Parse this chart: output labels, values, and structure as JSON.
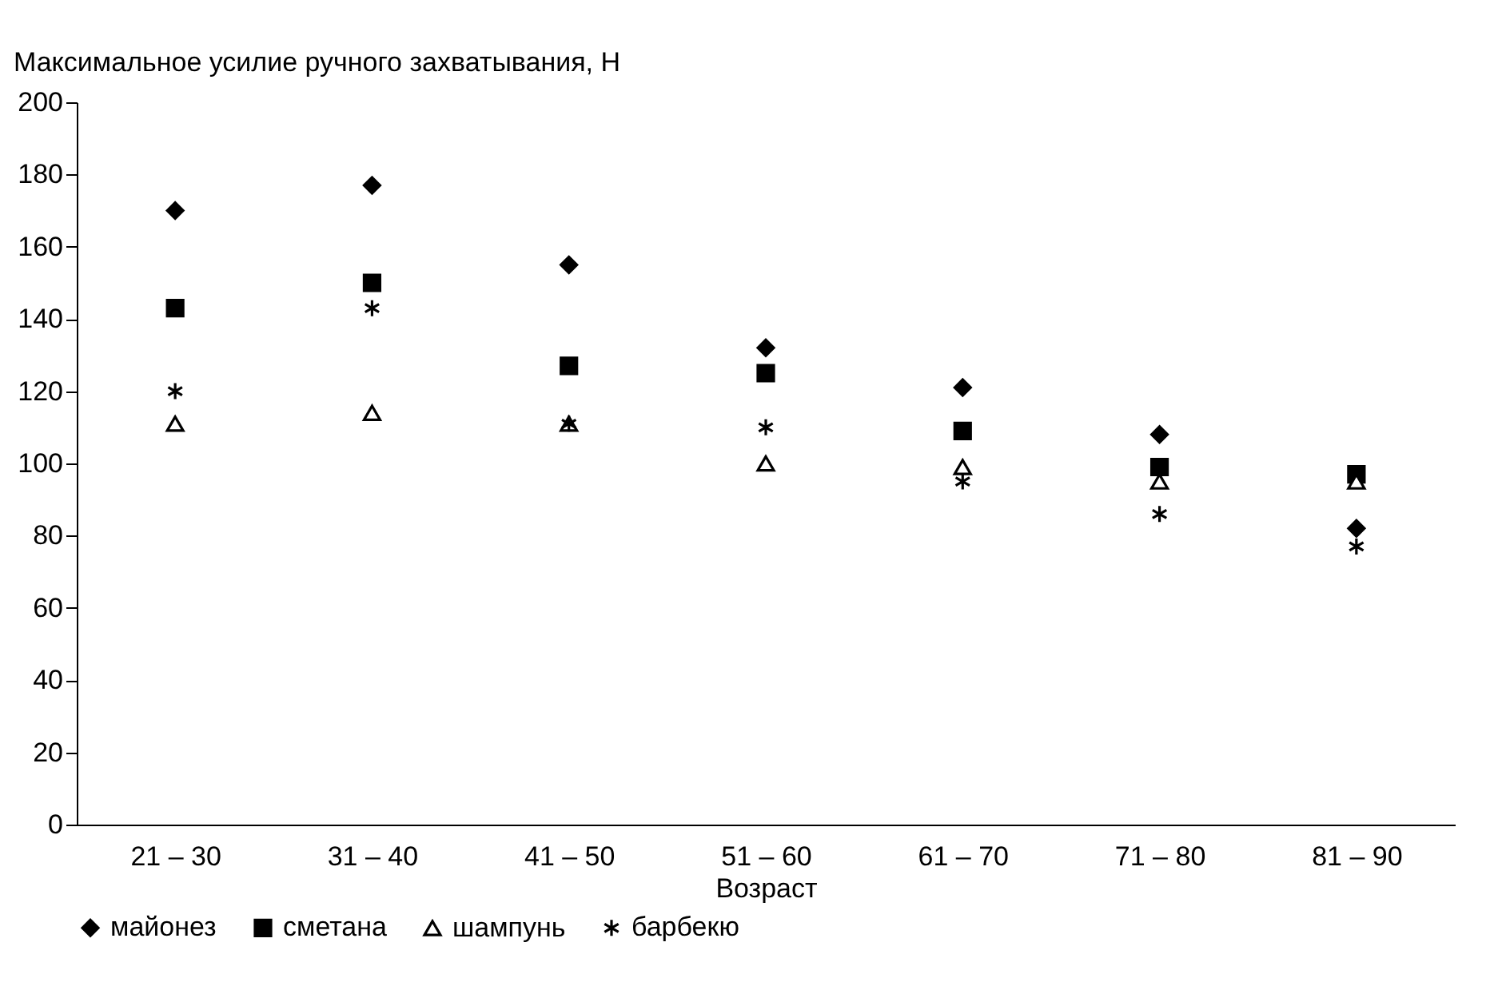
{
  "chart_data": {
    "type": "scatter",
    "ylabel": "Максимальное усилие ручного захватывания, Н",
    "xlabel": "Возраст",
    "categories": [
      "21 – 30",
      "31 – 40",
      "41 – 50",
      "51 – 60",
      "61 – 70",
      "71 – 80",
      "81 – 90"
    ],
    "ylim": [
      0,
      200
    ],
    "yticks": [
      0,
      20,
      40,
      60,
      80,
      100,
      120,
      140,
      160,
      180,
      200
    ],
    "grid": false,
    "legend": "bottom",
    "series": [
      {
        "name": "майонез",
        "color": "#000000",
        "marker": "diamond",
        "values": [
          170,
          177,
          155,
          132,
          121,
          108,
          82
        ]
      },
      {
        "name": "сметана",
        "color": "#000000",
        "marker": "square",
        "values": [
          143,
          150,
          127,
          125,
          109,
          99,
          97
        ]
      },
      {
        "name": "шампунь",
        "color": "#000000",
        "marker": "triangle",
        "values": [
          111,
          114,
          111,
          100,
          99,
          95,
          95
        ]
      },
      {
        "name": "барбекю",
        "color": "#000000",
        "marker": "cross",
        "values": [
          120,
          143,
          111,
          110,
          95,
          86,
          77
        ]
      }
    ]
  }
}
